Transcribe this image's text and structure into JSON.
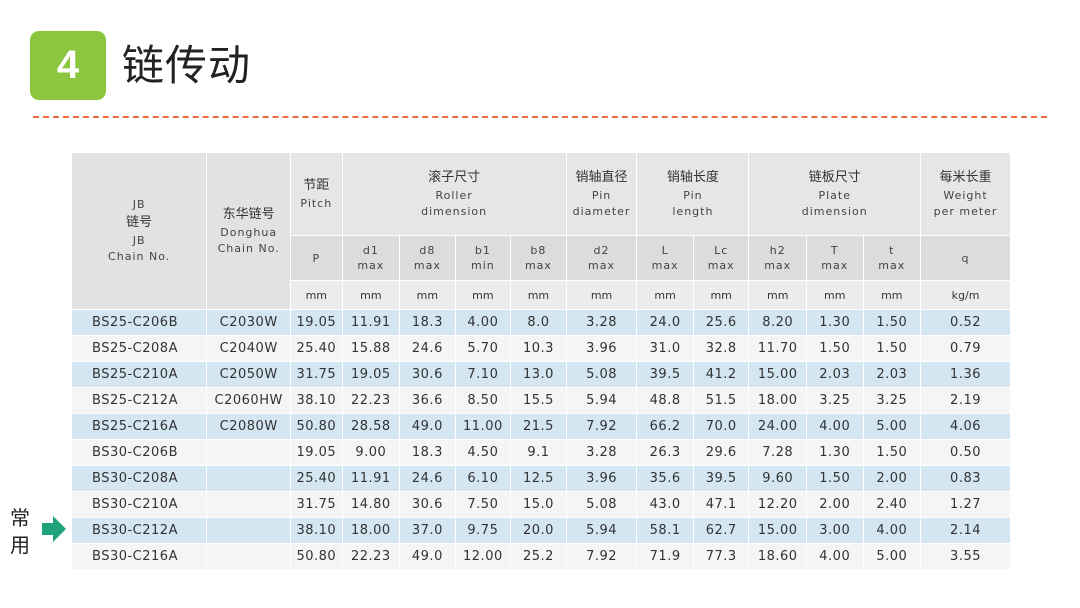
{
  "header": {
    "badge": "4",
    "title": "链传动",
    "accent_color": "#8cc63f",
    "divider_color": "#f06a3c"
  },
  "table": {
    "col_jb": {
      "l1": "JB",
      "l2": "链号",
      "l3": "JB",
      "l4": "Chain No."
    },
    "col_donghua": {
      "l1": "东华链号",
      "l2": "Donghua",
      "l3": "Chain No."
    },
    "group_pitch": {
      "cn": "节距",
      "en": "Pitch"
    },
    "group_roller": {
      "cn": "滚子尺寸",
      "en1": "Roller",
      "en2": "dimension"
    },
    "group_pin_dia": {
      "cn": "销轴直径",
      "en1": "Pin",
      "en2": "diameter"
    },
    "group_pin_len": {
      "cn": "销轴长度",
      "en1": "Pin",
      "en2": "length"
    },
    "group_plate": {
      "cn": "链板尺寸",
      "en1": "Plate",
      "en2": "dimension"
    },
    "group_weight": {
      "cn": "每米长重",
      "en1": "Weight",
      "en2": "per meter"
    },
    "sub": {
      "p": "P",
      "d1": [
        "d1",
        "max"
      ],
      "d8": [
        "d8",
        "max"
      ],
      "b1": [
        "b1",
        "min"
      ],
      "b8": [
        "b8",
        "max"
      ],
      "d2": [
        "d2",
        "max"
      ],
      "L": [
        "L",
        "max"
      ],
      "Lc": [
        "Lc",
        "max"
      ],
      "h2": [
        "h2",
        "max"
      ],
      "T": [
        "T",
        "max"
      ],
      "t": [
        "t",
        "max"
      ],
      "q": "q"
    },
    "units": [
      "mm",
      "mm",
      "mm",
      "mm",
      "mm",
      "mm",
      "mm",
      "mm",
      "mm",
      "mm",
      "mm",
      "kg/m"
    ],
    "rows": [
      [
        "BS25-C206B",
        "C2030W",
        "19.05",
        "11.91",
        "18.3",
        "4.00",
        "8.0",
        "3.28",
        "24.0",
        "25.6",
        "8.20",
        "1.30",
        "1.50",
        "0.52"
      ],
      [
        "BS25-C208A",
        "C2040W",
        "25.40",
        "15.88",
        "24.6",
        "5.70",
        "10.3",
        "3.96",
        "31.0",
        "32.8",
        "11.70",
        "1.50",
        "1.50",
        "0.79"
      ],
      [
        "BS25-C210A",
        "C2050W",
        "31.75",
        "19.05",
        "30.6",
        "7.10",
        "13.0",
        "5.08",
        "39.5",
        "41.2",
        "15.00",
        "2.03",
        "2.03",
        "1.36"
      ],
      [
        "BS25-C212A",
        "C2060HW",
        "38.10",
        "22.23",
        "36.6",
        "8.50",
        "15.5",
        "5.94",
        "48.8",
        "51.5",
        "18.00",
        "3.25",
        "3.25",
        "2.19"
      ],
      [
        "BS25-C216A",
        "C2080W",
        "50.80",
        "28.58",
        "49.0",
        "11.00",
        "21.5",
        "7.92",
        "66.2",
        "70.0",
        "24.00",
        "4.00",
        "5.00",
        "4.06"
      ],
      [
        "BS30-C206B",
        "",
        "19.05",
        "9.00",
        "18.3",
        "4.50",
        "9.1",
        "3.28",
        "26.3",
        "29.6",
        "7.28",
        "1.30",
        "1.50",
        "0.50"
      ],
      [
        "BS30-C208A",
        "",
        "25.40",
        "11.91",
        "24.6",
        "6.10",
        "12.5",
        "3.96",
        "35.6",
        "39.5",
        "9.60",
        "1.50",
        "2.00",
        "0.83"
      ],
      [
        "BS30-C210A",
        "",
        "31.75",
        "14.80",
        "30.6",
        "7.50",
        "15.0",
        "5.08",
        "43.0",
        "47.1",
        "12.20",
        "2.00",
        "2.40",
        "1.27"
      ],
      [
        "BS30-C212A",
        "",
        "38.10",
        "18.00",
        "37.0",
        "9.75",
        "20.0",
        "5.94",
        "58.1",
        "62.7",
        "15.00",
        "3.00",
        "4.00",
        "2.14"
      ],
      [
        "BS30-C216A",
        "",
        "50.80",
        "22.23",
        "49.0",
        "12.00",
        "25.2",
        "7.92",
        "71.9",
        "77.3",
        "18.60",
        "4.00",
        "5.00",
        "3.55"
      ]
    ]
  },
  "note": {
    "text": "常用",
    "arrow_icon": "arrow-right-icon",
    "arrow_color": "#1ea37b"
  }
}
